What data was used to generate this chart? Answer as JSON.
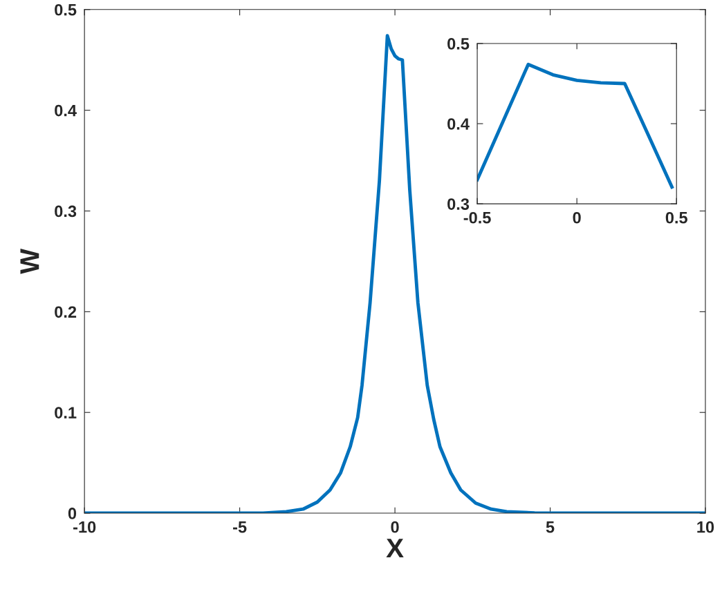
{
  "chart_data": [
    {
      "type": "line",
      "xlabel": "X",
      "ylabel": "W",
      "xlim": [
        -10,
        10
      ],
      "ylim": [
        0,
        0.5
      ],
      "xticks": [
        -10,
        -5,
        0,
        5,
        10
      ],
      "yticks": [
        0,
        0.1,
        0.2,
        0.3,
        0.4,
        0.5
      ],
      "grid": false,
      "legend": false,
      "x": [
        -10,
        -6,
        -4.25,
        -3.5,
        -2.96,
        -2.5,
        -2.09,
        -1.75,
        -1.44,
        -1.2,
        -1.06,
        -0.8,
        -0.5,
        -0.372,
        -0.244,
        -0.12,
        0,
        0.12,
        0.24,
        0.36,
        0.477,
        0.74,
        1.04,
        1.25,
        1.45,
        1.8,
        2.12,
        2.6,
        3.1,
        3.6,
        4.5,
        6,
        10
      ],
      "series": [
        {
          "color": "#0072bd",
          "values": [
            0,
            0,
            0.0,
            0.0015,
            0.004,
            0.011,
            0.023,
            0.04,
            0.066,
            0.095,
            0.127,
            0.209,
            0.33,
            0.402,
            0.474,
            0.461,
            0.454,
            0.451,
            0.45,
            0.385,
            0.321,
            0.209,
            0.127,
            0.093,
            0.066,
            0.04,
            0.023,
            0.01,
            0.004,
            0.0015,
            0.0003,
            0,
            0
          ]
        }
      ]
    },
    {
      "type": "line",
      "xlim": [
        -0.5,
        0.5
      ],
      "ylim": [
        0.3,
        0.5
      ],
      "xticks": [
        -0.5,
        0,
        0.5
      ],
      "yticks": [
        0.3,
        0.4,
        0.5
      ],
      "grid": false,
      "legend": false,
      "x": [
        -0.5,
        -0.372,
        -0.244,
        -0.12,
        0,
        0.12,
        0.24,
        0.36,
        0.477
      ],
      "series": [
        {
          "color": "#0072bd",
          "values": [
            0.33,
            0.402,
            0.474,
            0.461,
            0.454,
            0.451,
            0.45,
            0.385,
            0.321
          ]
        }
      ]
    }
  ]
}
